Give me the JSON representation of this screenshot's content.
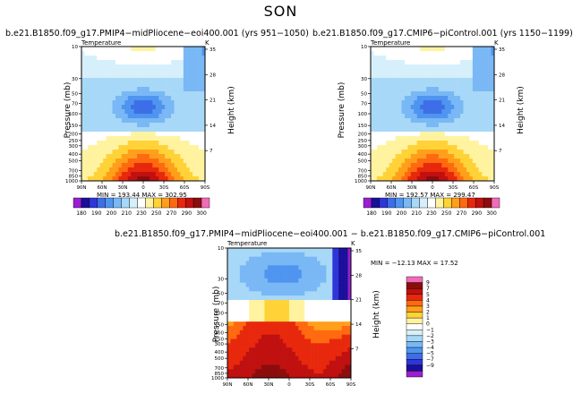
{
  "title": "SON",
  "panels": [
    {
      "title": "b.e21.B1850.f09_g17.PMIP4−midPliocene−eoi400.001 (yrs 951−1050)",
      "var": "Temperature",
      "k": "K",
      "stats": "MIN = 193.44   MAX = 302.95"
    },
    {
      "title": "b.e21.B1850.f09_g17.CMIP6−piControl.001 (yrs 1150−1199)",
      "var": "Temperature",
      "k": "K",
      "stats": "MIN = 192.57   MAX = 299.47"
    },
    {
      "title": "b.e21.B1850.f09_g17.PMIP4−midPliocene−eoi400.001 − b.e21.B1850.f09_g17.CMIP6−piControl.001",
      "var": "Temperature",
      "k": "K",
      "stats": "MIN = −12.13   MAX =  17.52"
    }
  ],
  "axes": {
    "ylabel": "Pressure (mb)",
    "ylabel2": "Height (km)",
    "pressure_ticks": [
      "10",
      "30",
      "50",
      "70",
      "100",
      "150",
      "200",
      "250",
      "300",
      "400",
      "500",
      "700",
      "850",
      "1000"
    ],
    "height_ticks": [
      "35",
      "28",
      "21",
      "14",
      "7"
    ],
    "lat_ticks": [
      "90N",
      "60N",
      "30N",
      "0",
      "30S",
      "60S",
      "90S"
    ]
  },
  "colorbar_abs": {
    "labels": [
      "180",
      "190",
      "200",
      "210",
      "230",
      "250",
      "270",
      "290",
      "300"
    ],
    "colors": [
      "#9a1fd0",
      "#1a0f9a",
      "#2f36d8",
      "#3d6ee8",
      "#4f95f0",
      "#79b8f5",
      "#a8d8f8",
      "#d6f0fb",
      "#ffffff",
      "#fff3a0",
      "#ffd238",
      "#ff9f1a",
      "#ff6a10",
      "#e8280c",
      "#c01010",
      "#8c0c0c",
      "#f06cb8"
    ]
  },
  "colorbar_diff": {
    "labels": [
      "9",
      "7",
      "5",
      "4",
      "3",
      "2",
      "1",
      "0",
      "−1",
      "−2",
      "−3",
      "−4",
      "−5",
      "−7",
      "−9"
    ],
    "colors": [
      "#f06cb8",
      "#8c0c0c",
      "#c01010",
      "#e8280c",
      "#ff6a10",
      "#ff9f1a",
      "#ffd238",
      "#fff3a0",
      "#ffffff",
      "#d6f0fb",
      "#a8d8f8",
      "#79b8f5",
      "#4f95f0",
      "#3d6ee8",
      "#2f36d8",
      "#1a0f9a",
      "#9a1fd0"
    ]
  },
  "chart_data": [
    {
      "type": "heatmap",
      "title": "b.e21.B1850.f09_g17.PMIP4−midPliocene−eoi400.001 (yrs 951−1050)",
      "variable": "Temperature",
      "units": "K",
      "x": "latitude (90N to 90S)",
      "y": "pressure (mb), 10 to 1000",
      "min": 193.44,
      "max": 302.95,
      "colorbar_levels": [
        180,
        190,
        200,
        210,
        230,
        250,
        270,
        290,
        300
      ]
    },
    {
      "type": "heatmap",
      "title": "b.e21.B1850.f09_g17.CMIP6−piControl.001 (yrs 1150−1199)",
      "variable": "Temperature",
      "units": "K",
      "min": 192.57,
      "max": 299.47,
      "colorbar_levels": [
        180,
        190,
        200,
        210,
        230,
        250,
        270,
        290,
        300
      ]
    },
    {
      "type": "heatmap",
      "title": "b.e21.B1850.f09_g17.PMIP4−midPliocene−eoi400.001 − b.e21.B1850.f09_g17.CMIP6−piControl.001",
      "variable": "Temperature",
      "units": "K",
      "min": -12.13,
      "max": 17.52,
      "colorbar_levels": [
        9,
        7,
        5,
        4,
        3,
        2,
        1,
        0,
        -1,
        -2,
        -3,
        -4,
        -5,
        -7,
        -9
      ]
    }
  ]
}
